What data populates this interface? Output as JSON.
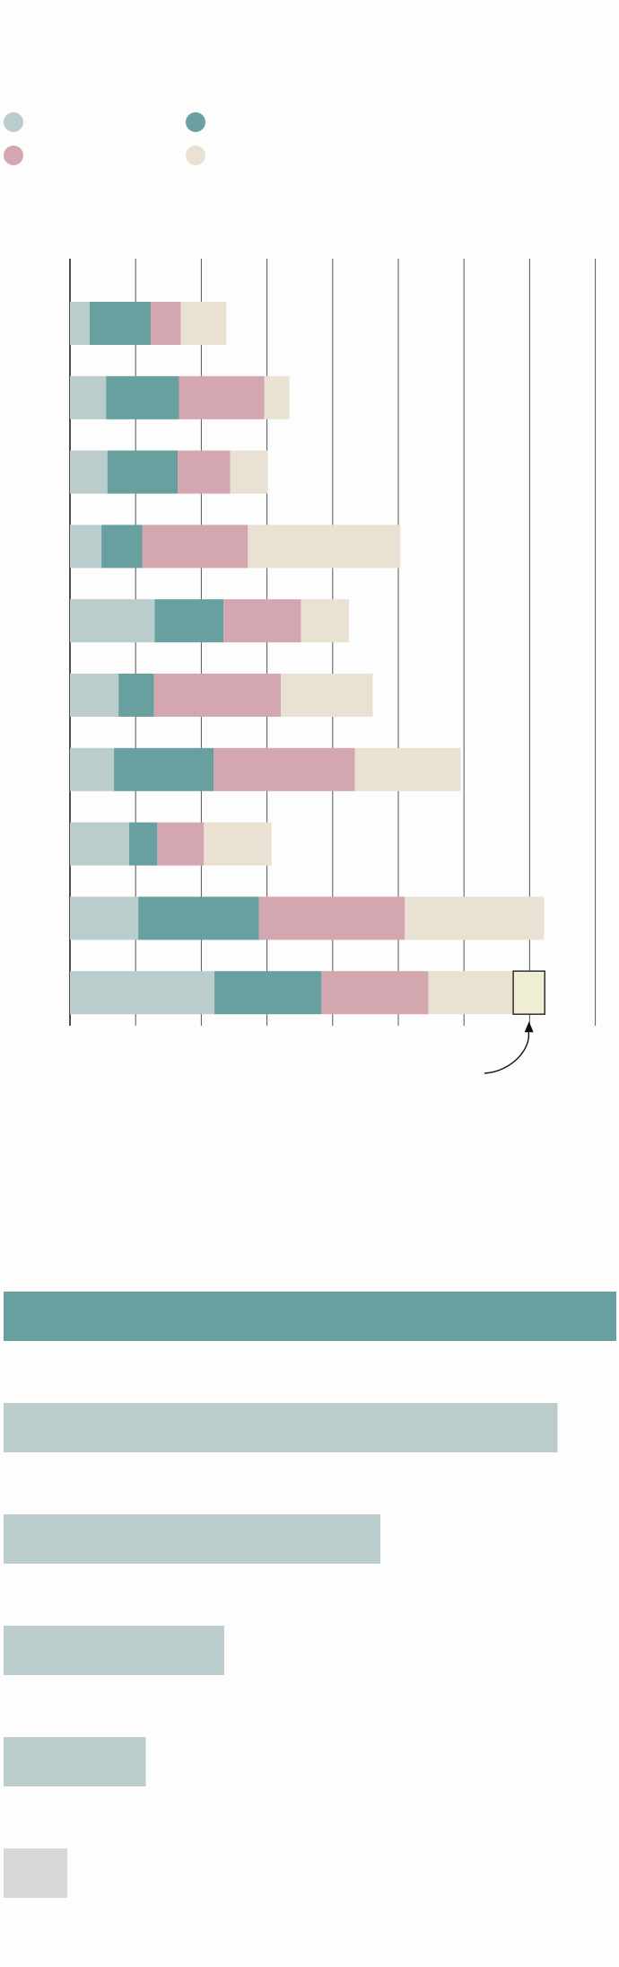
{
  "legend_items": [
    {
      "color": "#bacccb"
    },
    {
      "color": "#67a09e"
    },
    {
      "color": "#d4a7b0"
    },
    {
      "color": "#e9e1d1"
    }
  ],
  "chart_data": [
    {
      "type": "bar",
      "orientation": "horizontal",
      "stacked": true,
      "grid": true,
      "xlim": [
        0,
        8
      ],
      "categories": [
        "",
        "",
        "",
        "",
        "",
        "",
        "",
        "",
        "",
        ""
      ],
      "series": [
        {
          "color": "#bacccb",
          "values": [
            0.3,
            0.55,
            0.57,
            0.48,
            1.29,
            0.74,
            0.67,
            0.9,
            1.04,
            2.2
          ]
        },
        {
          "color": "#67a09e",
          "values": [
            0.93,
            1.11,
            1.07,
            0.62,
            1.05,
            0.54,
            1.52,
            0.43,
            1.84,
            1.63
          ]
        },
        {
          "color": "#d4a7b0",
          "values": [
            0.46,
            1.3,
            0.8,
            1.61,
            1.18,
            1.93,
            2.15,
            0.71,
            2.22,
            1.63
          ]
        },
        {
          "color": "#e9e1d1",
          "values": [
            0.69,
            0.38,
            0.57,
            2.32,
            0.73,
            1.4,
            1.61,
            1.03,
            2.12,
            1.29
          ]
        }
      ],
      "highlight": {
        "row": 9,
        "value": 0.48,
        "color": "#efedd2",
        "arrow": true
      }
    },
    {
      "type": "bar",
      "orientation": "horizontal",
      "categories": [
        "",
        "",
        "",
        "",
        "",
        ""
      ],
      "values": [
        100,
        90.4,
        61.5,
        36,
        23.2,
        10.4
      ],
      "colors": [
        "#67a09e",
        "#bacccb",
        "#bacccb",
        "#bacccb",
        "#bacccb",
        "#d8d8d8"
      ]
    }
  ]
}
